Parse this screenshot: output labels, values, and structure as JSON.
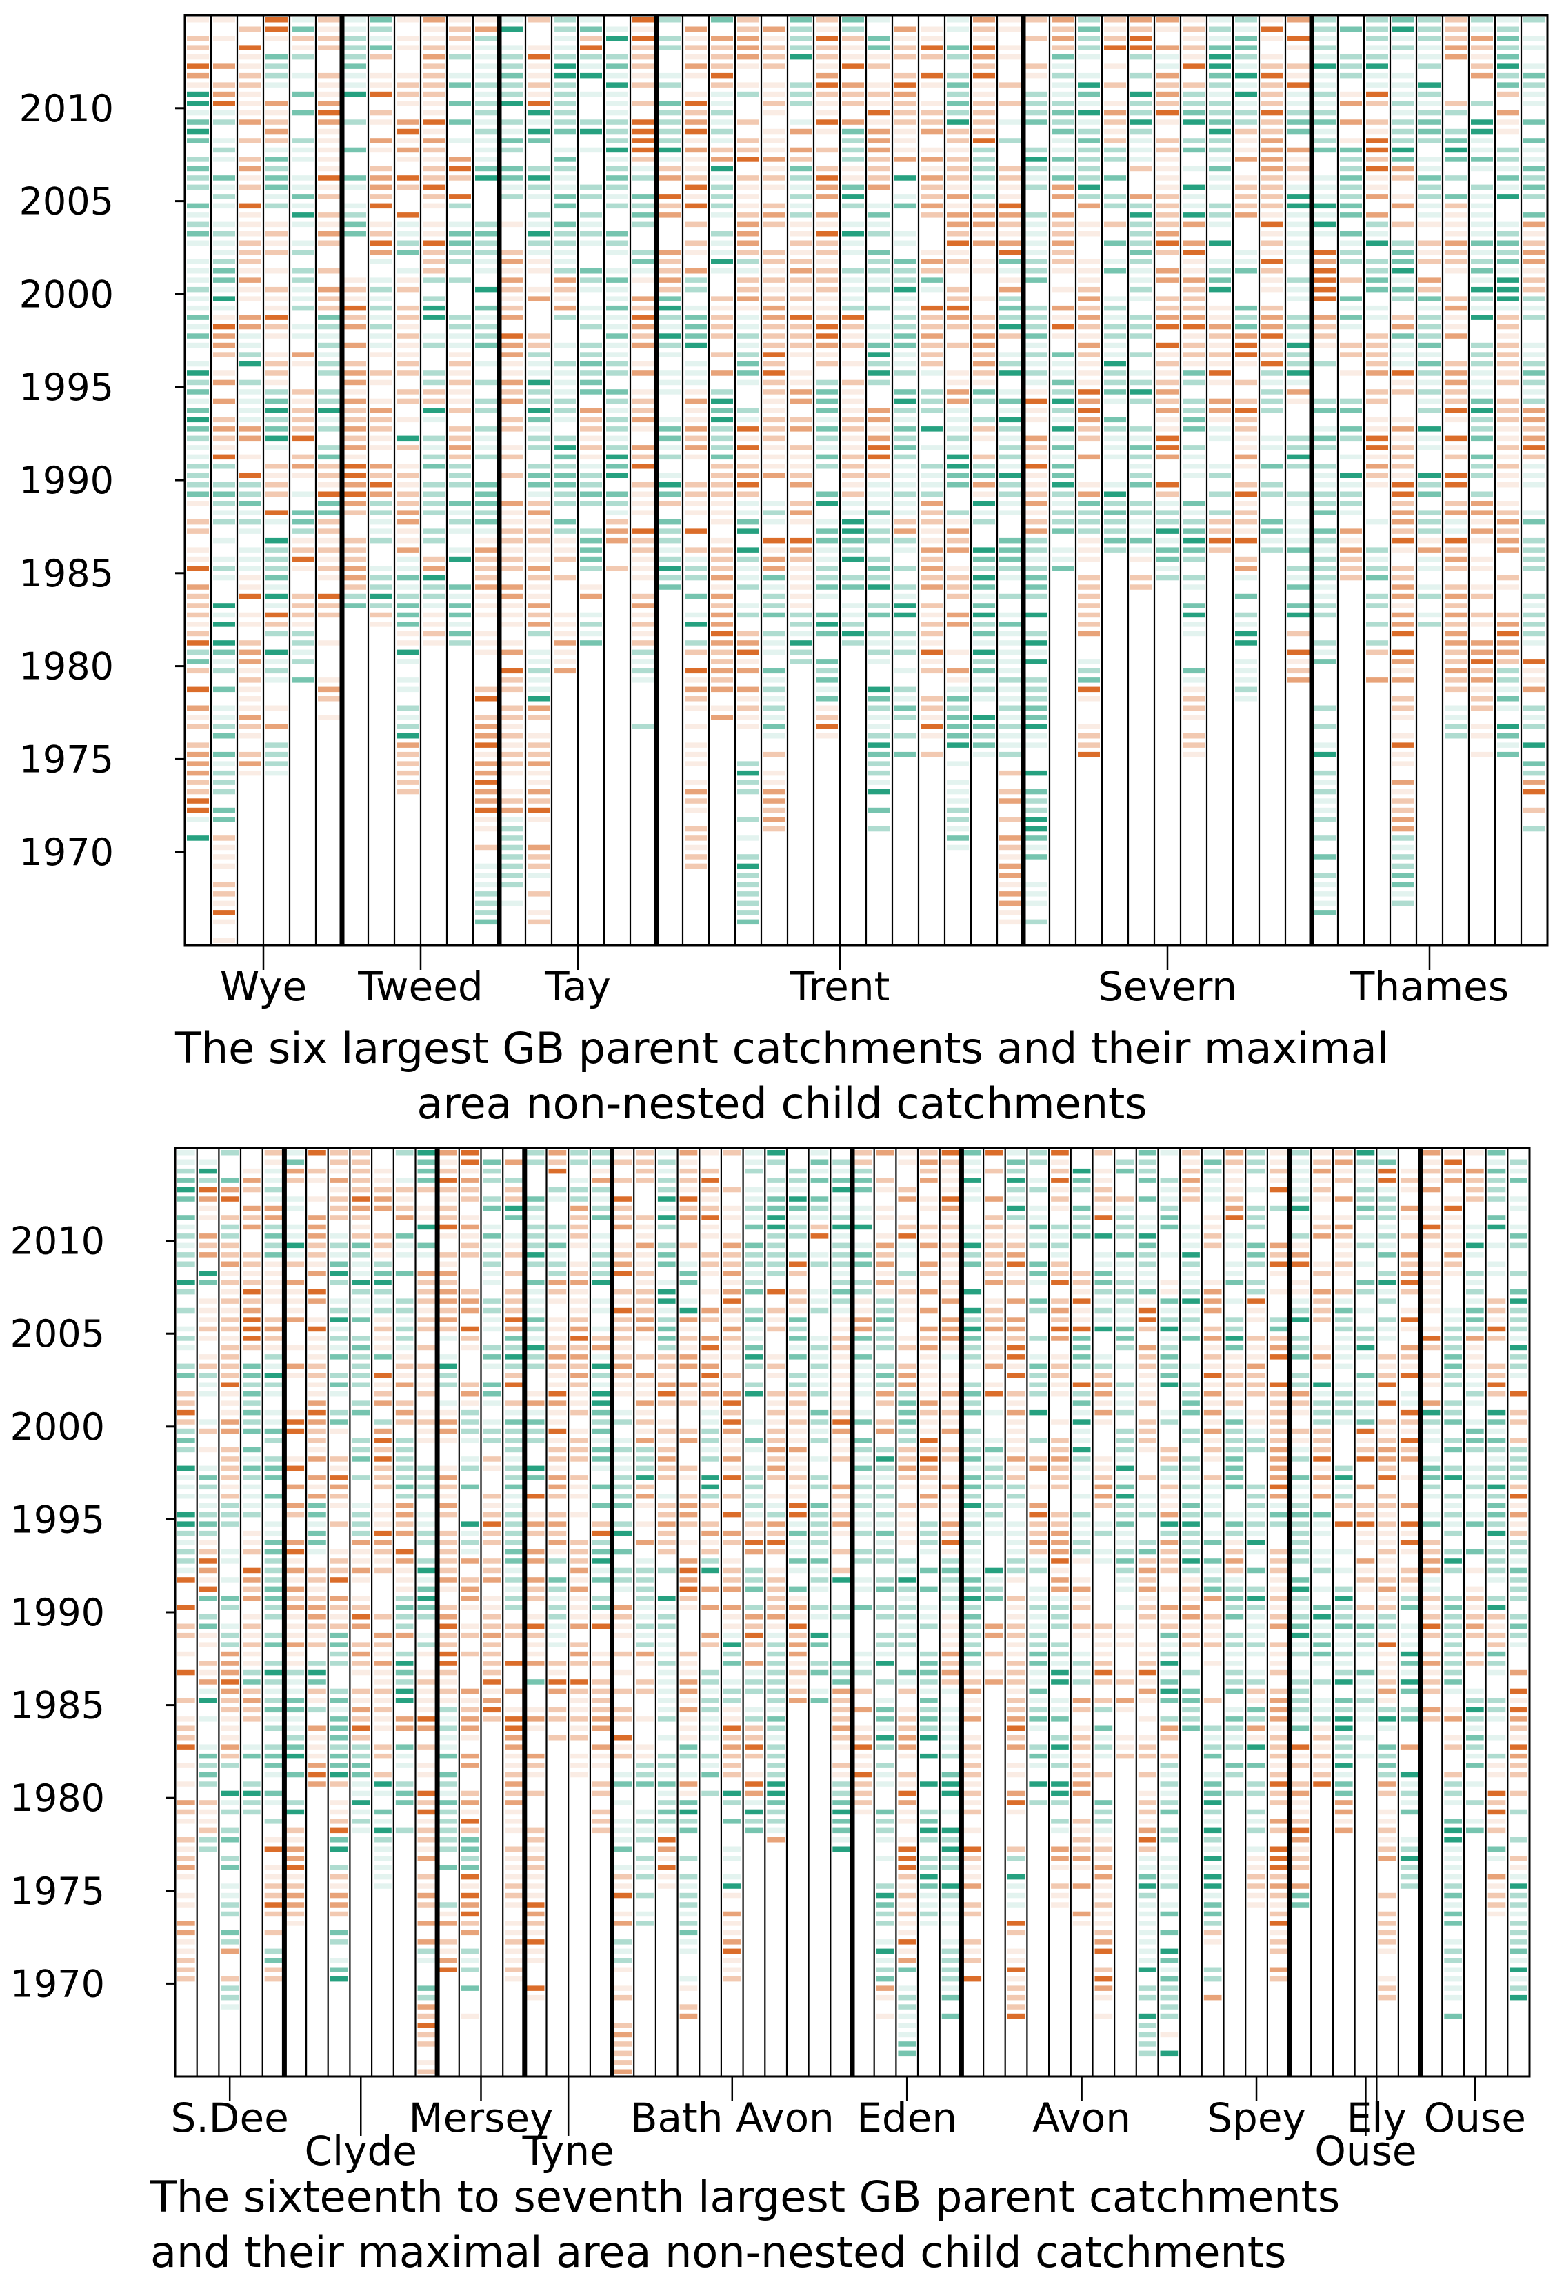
{
  "chart_data": [
    {
      "type": "heatmap",
      "title": "",
      "years_range": [
        1965,
        2015
      ],
      "ytick_labels": [
        "2010",
        "2005",
        "2000",
        "1995",
        "1990",
        "1985",
        "1980",
        "1975",
        "1970"
      ],
      "ytick_values": [
        2010,
        2005,
        2000,
        1995,
        1990,
        1985,
        1980,
        1975,
        1970
      ],
      "n_columns": 52,
      "parent_boundaries_after_column": [
        6,
        12,
        18,
        32,
        43
      ],
      "groups": [
        {
          "name": "Wye",
          "columns": [
            0,
            5
          ]
        },
        {
          "name": "Tweed",
          "columns": [
            6,
            11
          ]
        },
        {
          "name": "Tay",
          "columns": [
            12,
            17
          ]
        },
        {
          "name": "Trent",
          "columns": [
            18,
            31
          ]
        },
        {
          "name": "Severn",
          "columns": [
            32,
            42
          ]
        },
        {
          "name": "Thames",
          "columns": [
            43,
            51
          ]
        }
      ],
      "caption": "The six largest GB parent catchments and their maximal area non-nested child catchments",
      "colors": {
        "wet": "#d9651f",
        "dry": "#1a9c79",
        "frame": "#000000"
      },
      "seed": 7
    },
    {
      "type": "heatmap",
      "title": "",
      "years_range": [
        1965,
        2015
      ],
      "ytick_labels": [
        "2010",
        "2005",
        "2000",
        "1995",
        "1990",
        "1985",
        "1980",
        "1975",
        "1970"
      ],
      "ytick_values": [
        2010,
        2005,
        2000,
        1995,
        1990,
        1985,
        1980,
        1975,
        1970
      ],
      "n_columns": 62,
      "parent_boundaries_after_column": [
        5,
        12,
        16,
        20,
        31,
        36,
        51,
        57
      ],
      "groups": [
        {
          "name": "S.Dee",
          "columns": [
            0,
            4
          ],
          "row": 0
        },
        {
          "name": "Clyde",
          "columns": [
            5,
            11
          ],
          "row": 1
        },
        {
          "name": "Mersey",
          "columns": [
            12,
            15
          ],
          "row": 0
        },
        {
          "name": "Tyne",
          "columns": [
            16,
            19
          ],
          "row": 1
        },
        {
          "name": "Bath Avon",
          "columns": [
            20,
            30
          ],
          "row": 0
        },
        {
          "name": "Eden",
          "columns": [
            31,
            35
          ],
          "row": 0
        },
        {
          "name": "Avon",
          "columns": [
            36,
            46
          ],
          "row": 0
        },
        {
          "name": "Spey",
          "columns": [
            47,
            51
          ],
          "row": 0
        },
        {
          "name": "Ouse",
          "columns": [
            52,
            56
          ],
          "row": 1
        },
        {
          "name": "Ely",
          "columns": [
            53,
            56
          ],
          "row": 0
        },
        {
          "name": "Ouse",
          "columns": [
            57,
            61
          ],
          "row": 0
        }
      ],
      "caption_line1": "The sixteenth to seventh largest GB parent catchments",
      "caption_line2": "and their maximal area non-nested child catchments",
      "colors": {
        "wet": "#d9651f",
        "dry": "#1a9c79",
        "frame": "#000000"
      },
      "seed": 23
    }
  ]
}
